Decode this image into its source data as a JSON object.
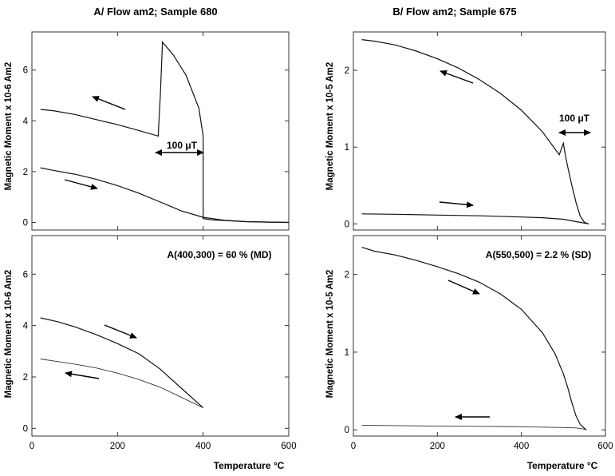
{
  "colors": {
    "line": "#111111",
    "frame": "#333333",
    "background": "#ffffff"
  },
  "figure": {
    "xlabel": "Temperature °C"
  },
  "chart_data": [
    {
      "id": "A-top",
      "type": "line",
      "title": "A/ Flow am2; Sample 680",
      "ylabel": "Magnetic Moment x 10-6 Am2",
      "xlim": [
        0,
        600
      ],
      "ylim": [
        -0.3,
        7.5
      ],
      "xticks": [
        0,
        200,
        400,
        600
      ],
      "yticks": [
        0,
        2,
        4,
        6
      ],
      "show_x_ticklabels": false,
      "annotation": "100 μT",
      "series": [
        {
          "role": "heating",
          "x": [
            20,
            50,
            100,
            150,
            200,
            250,
            300,
            350,
            400,
            450,
            500,
            550,
            600
          ],
          "y": [
            2.15,
            2.05,
            1.9,
            1.7,
            1.45,
            1.15,
            0.8,
            0.45,
            0.2,
            0.08,
            0.03,
            0.01,
            0.0
          ]
        },
        {
          "role": "cooling",
          "x": [
            20,
            50,
            100,
            150,
            200,
            250,
            295,
            300,
            305,
            330,
            360,
            390,
            400,
            400,
            420,
            500,
            600
          ],
          "y": [
            4.45,
            4.4,
            4.25,
            4.05,
            3.85,
            3.62,
            3.4,
            5.0,
            7.1,
            6.6,
            5.8,
            4.5,
            3.4,
            0.15,
            0.1,
            0.03,
            0.0
          ]
        }
      ]
    },
    {
      "id": "B-top",
      "type": "line",
      "title": "B/ Flow am2; Sample 675",
      "ylabel": "Magnetic Moment x 10-5 Am2",
      "xlim": [
        0,
        600
      ],
      "ylim": [
        -0.08,
        2.5
      ],
      "xticks": [
        0,
        200,
        400,
        600
      ],
      "yticks": [
        0,
        1,
        2
      ],
      "show_x_ticklabels": false,
      "annotation": "100 μT",
      "series": [
        {
          "role": "heating",
          "x": [
            20,
            100,
            200,
            300,
            400,
            450,
            500,
            520,
            540,
            560
          ],
          "y": [
            0.13,
            0.125,
            0.115,
            0.105,
            0.09,
            0.08,
            0.06,
            0.04,
            0.02,
            0.0
          ]
        },
        {
          "role": "cooling",
          "x": [
            20,
            50,
            100,
            150,
            200,
            250,
            300,
            350,
            400,
            450,
            490,
            500,
            505,
            510,
            520,
            530,
            540,
            550,
            560
          ],
          "y": [
            2.4,
            2.38,
            2.33,
            2.25,
            2.15,
            2.03,
            1.88,
            1.7,
            1.48,
            1.2,
            0.9,
            1.05,
            0.88,
            0.75,
            0.5,
            0.28,
            0.1,
            0.02,
            0.0
          ]
        }
      ]
    },
    {
      "id": "A-bottom",
      "type": "line",
      "ylabel": "Magnetic Moment x 10-6 Am2",
      "xlim": [
        0,
        600
      ],
      "ylim": [
        -0.3,
        7.5
      ],
      "xticks": [
        0,
        200,
        400,
        600
      ],
      "yticks": [
        0,
        2,
        4,
        6
      ],
      "xticklabels": [
        "0",
        "200",
        "400",
        "600"
      ],
      "annotation": "A(400,300) = 60 % (MD)",
      "series": [
        {
          "role": "upper",
          "x": [
            20,
            60,
            100,
            150,
            200,
            250,
            300,
            350,
            400
          ],
          "y": [
            4.3,
            4.15,
            3.95,
            3.65,
            3.3,
            2.9,
            2.3,
            1.55,
            0.8
          ]
        },
        {
          "role": "lower",
          "x": [
            20,
            60,
            100,
            150,
            200,
            250,
            300,
            350,
            400
          ],
          "y": [
            2.7,
            2.6,
            2.5,
            2.35,
            2.15,
            1.9,
            1.6,
            1.2,
            0.8
          ]
        }
      ]
    },
    {
      "id": "B-bottom",
      "type": "line",
      "ylabel": "Magnetic Moment x 10-5 Am2",
      "xlim": [
        0,
        600
      ],
      "ylim": [
        -0.08,
        2.5
      ],
      "xticks": [
        0,
        200,
        400,
        600
      ],
      "yticks": [
        0,
        1,
        2
      ],
      "xticklabels": [
        "0",
        "200",
        "400",
        "600"
      ],
      "annotation": "A(550,500) = 2.2 % (SD)",
      "series": [
        {
          "role": "upper",
          "x": [
            20,
            50,
            100,
            150,
            200,
            250,
            300,
            350,
            400,
            450,
            480,
            500,
            510,
            520,
            530,
            540,
            550,
            555
          ],
          "y": [
            2.35,
            2.3,
            2.25,
            2.18,
            2.1,
            2.01,
            1.9,
            1.75,
            1.55,
            1.25,
            0.98,
            0.72,
            0.55,
            0.35,
            0.18,
            0.07,
            0.02,
            0.0
          ]
        },
        {
          "role": "lower",
          "x": [
            20,
            100,
            200,
            300,
            400,
            450,
            500,
            530,
            545,
            555
          ],
          "y": [
            0.06,
            0.055,
            0.05,
            0.045,
            0.04,
            0.035,
            0.03,
            0.025,
            0.015,
            0.0
          ]
        }
      ]
    }
  ]
}
